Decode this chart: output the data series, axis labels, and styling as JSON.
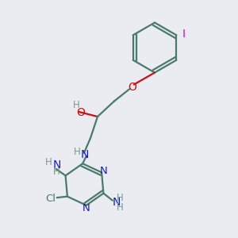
{
  "bg_color": "#eaecf2",
  "bond_color": "#4a7a6a",
  "N_color": "#1a1acc",
  "O_color": "#cc1111",
  "Cl_color": "#4a7a6a",
  "I_color": "#cc00cc",
  "H_color": "#7a9a8a",
  "figsize": [
    3.0,
    3.0
  ],
  "dpi": 100,
  "xlim": [
    0,
    10
  ],
  "ylim": [
    0,
    10
  ]
}
